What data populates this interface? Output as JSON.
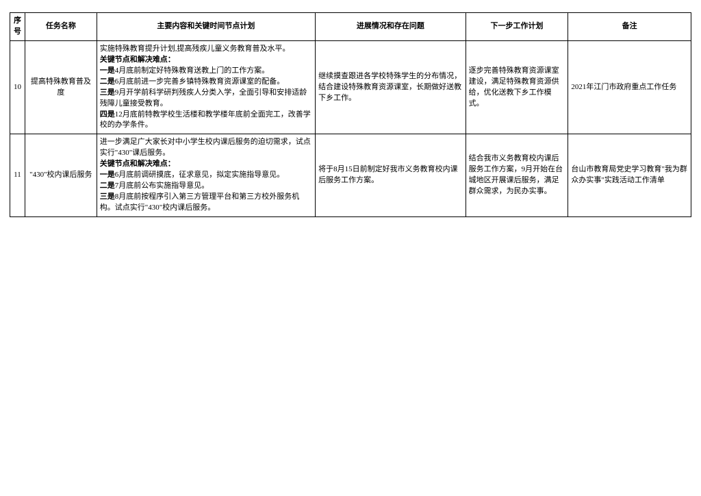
{
  "table": {
    "headers": {
      "seq": "序号",
      "name": "任务名称",
      "main": "主要内容和关键时间节点计划",
      "prog": "进展情况和存在问题",
      "next": "下一步工作计划",
      "note": "备注"
    },
    "rows": [
      {
        "seq": "10",
        "name": "提高特殊教育普及度",
        "main_line1": "实施特殊教育提升计划,提高残疾儿童义务教育普及水平。",
        "main_bold_a": "关键节点和解决难点：",
        "main_bold_1": "一是",
        "main_txt_1": "4月底前制定好特殊教育送教上门的工作方案。",
        "main_bold_2": "二是",
        "main_txt_2": "6月底前进一步完善乡镇特殊教育资源课室的配备。",
        "main_bold_3": "三是",
        "main_txt_3": "9月开学前科学研判残疾人分类入学，全面引导和安排适龄残障儿童接受教育。",
        "main_bold_4": "四是",
        "main_txt_4": "12月底前特教学校生活楼和教学楼年底前全面完工，改善学校的办学条件。",
        "prog": "继续摸查跟进各学校特殊学生的分布情况，结合建设特殊教育资源课室，长期做好送教下乡工作。",
        "next": "逐步完善特殊教育资源课室建设，满足特殊教育资源供给，优化送教下乡工作模式。",
        "note": "2021年江门市政府重点工作任务"
      },
      {
        "seq": "11",
        "name": "\"430\"校内课后服务",
        "main_line1": "进一步满足广大家长对中小学生校内课后服务的迫切需求，试点实行\"430\"课后服务。",
        "main_bold_a": "关键节点和解决难点：",
        "main_bold_1": "一是",
        "main_txt_1": "6月底前调研摸底，征求意见，拟定实施指导意见。",
        "main_bold_2": "二是",
        "main_txt_2": "7月底前公布实施指导意见。",
        "main_bold_3": "三是",
        "main_txt_3": "8月底前按程序引入第三方管理平台和第三方校外服务机构。试点实行\"430\"校内课后服务。",
        "main_bold_4": "",
        "main_txt_4": "",
        "prog": "将于8月15日前制定好我市义务教育校内课后服务工作方案。",
        "next": "结合我市义务教育校内课后服务工作方案，9月开始在台城地区开展课后服务，满足群众需求，为民办实事。",
        "note": "台山市教育局党史学习教育\"我为群众办实事\"实践活动工作清单"
      }
    ]
  }
}
